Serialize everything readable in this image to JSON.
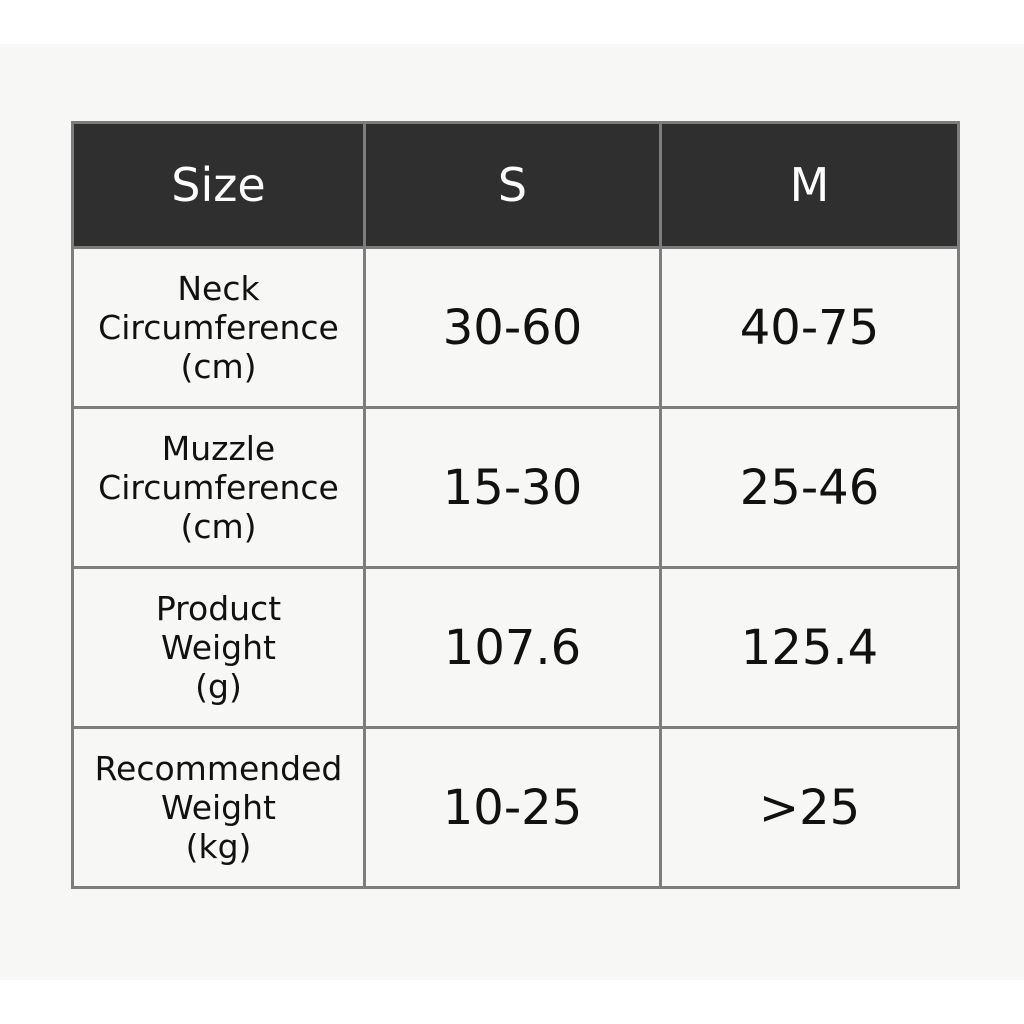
{
  "table": {
    "headers": [
      "Size",
      "S",
      "M"
    ],
    "rows": [
      {
        "label": "Neck\nCircumference\n(cm)",
        "s": "30-60",
        "m": "40-75"
      },
      {
        "label": "Muzzle\nCircumference\n(cm)",
        "s": "15-30",
        "m": "25-46"
      },
      {
        "label": "Product\nWeight\n(g)",
        "s": "107.6",
        "m": "125.4"
      },
      {
        "label": "Recommended\nWeight\n(kg)",
        "s": "10-25",
        "m": ">25"
      }
    ]
  },
  "colors": {
    "header_bg": "#2f2f2f",
    "header_text": "#ffffff",
    "border": "#7d7d7d",
    "cell_bg": "#f7f7f5"
  }
}
